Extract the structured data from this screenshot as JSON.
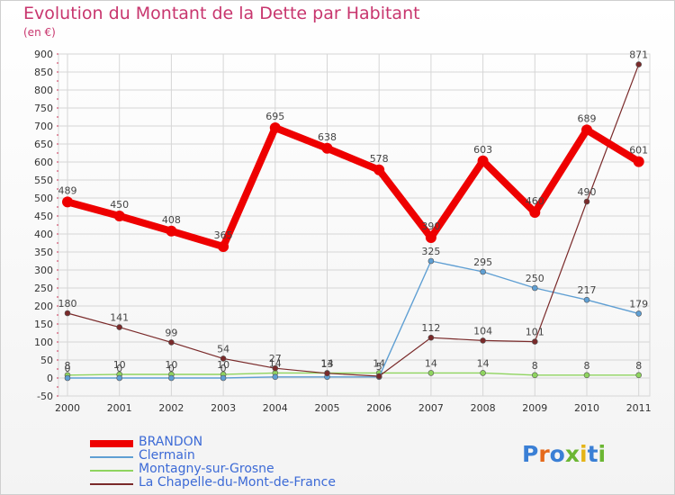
{
  "title": "Evolution du Montant de la Dette par Habitant",
  "unit": "(en €)",
  "logo": {
    "text": "Proxiti",
    "colors": [
      "#3a7fd5",
      "#e56a1c",
      "#3a7fd5",
      "#6bb633",
      "#e5b418",
      "#3a7fd5",
      "#6bb633"
    ]
  },
  "chart_data": {
    "type": "line",
    "categories": [
      "2000",
      "2001",
      "2002",
      "2003",
      "2004",
      "2005",
      "2006",
      "2007",
      "2008",
      "2009",
      "2010",
      "2011"
    ],
    "ylim": [
      -50,
      900
    ],
    "yticks": [
      -50,
      0,
      50,
      100,
      150,
      200,
      250,
      300,
      350,
      400,
      450,
      500,
      550,
      600,
      650,
      700,
      750,
      800,
      850,
      900
    ],
    "grid": true,
    "legend": "bottom-left",
    "series": [
      {
        "name": "BRANDON",
        "color": "#ee0000",
        "values": [
          489,
          450,
          408,
          365,
          695,
          638,
          578,
          390,
          603,
          460,
          689,
          601
        ]
      },
      {
        "name": "Clermain",
        "color": "#5f9fd3",
        "values": [
          0,
          0,
          0,
          0,
          3,
          3,
          3,
          325,
          295,
          250,
          217,
          179
        ],
        "labels": [
          "0",
          "0",
          "0",
          "0",
          "",
          "",
          "",
          "325",
          "295",
          "250",
          "217",
          "179"
        ]
      },
      {
        "name": "Montagny-sur-Grosne",
        "color": "#8fd45f",
        "values": [
          8,
          10,
          10,
          10,
          14,
          14,
          14,
          14,
          14,
          8,
          8,
          8
        ],
        "labels": [
          "8",
          "10",
          "10",
          "10",
          "14",
          "14",
          "14",
          "14",
          "14",
          "8",
          "8",
          "8"
        ]
      },
      {
        "name": "La Chapelle-du-Mont-de-France",
        "color": "#7a2a2a",
        "values": [
          180,
          141,
          99,
          54,
          27,
          13,
          5,
          112,
          104,
          101,
          490,
          871
        ]
      }
    ]
  }
}
